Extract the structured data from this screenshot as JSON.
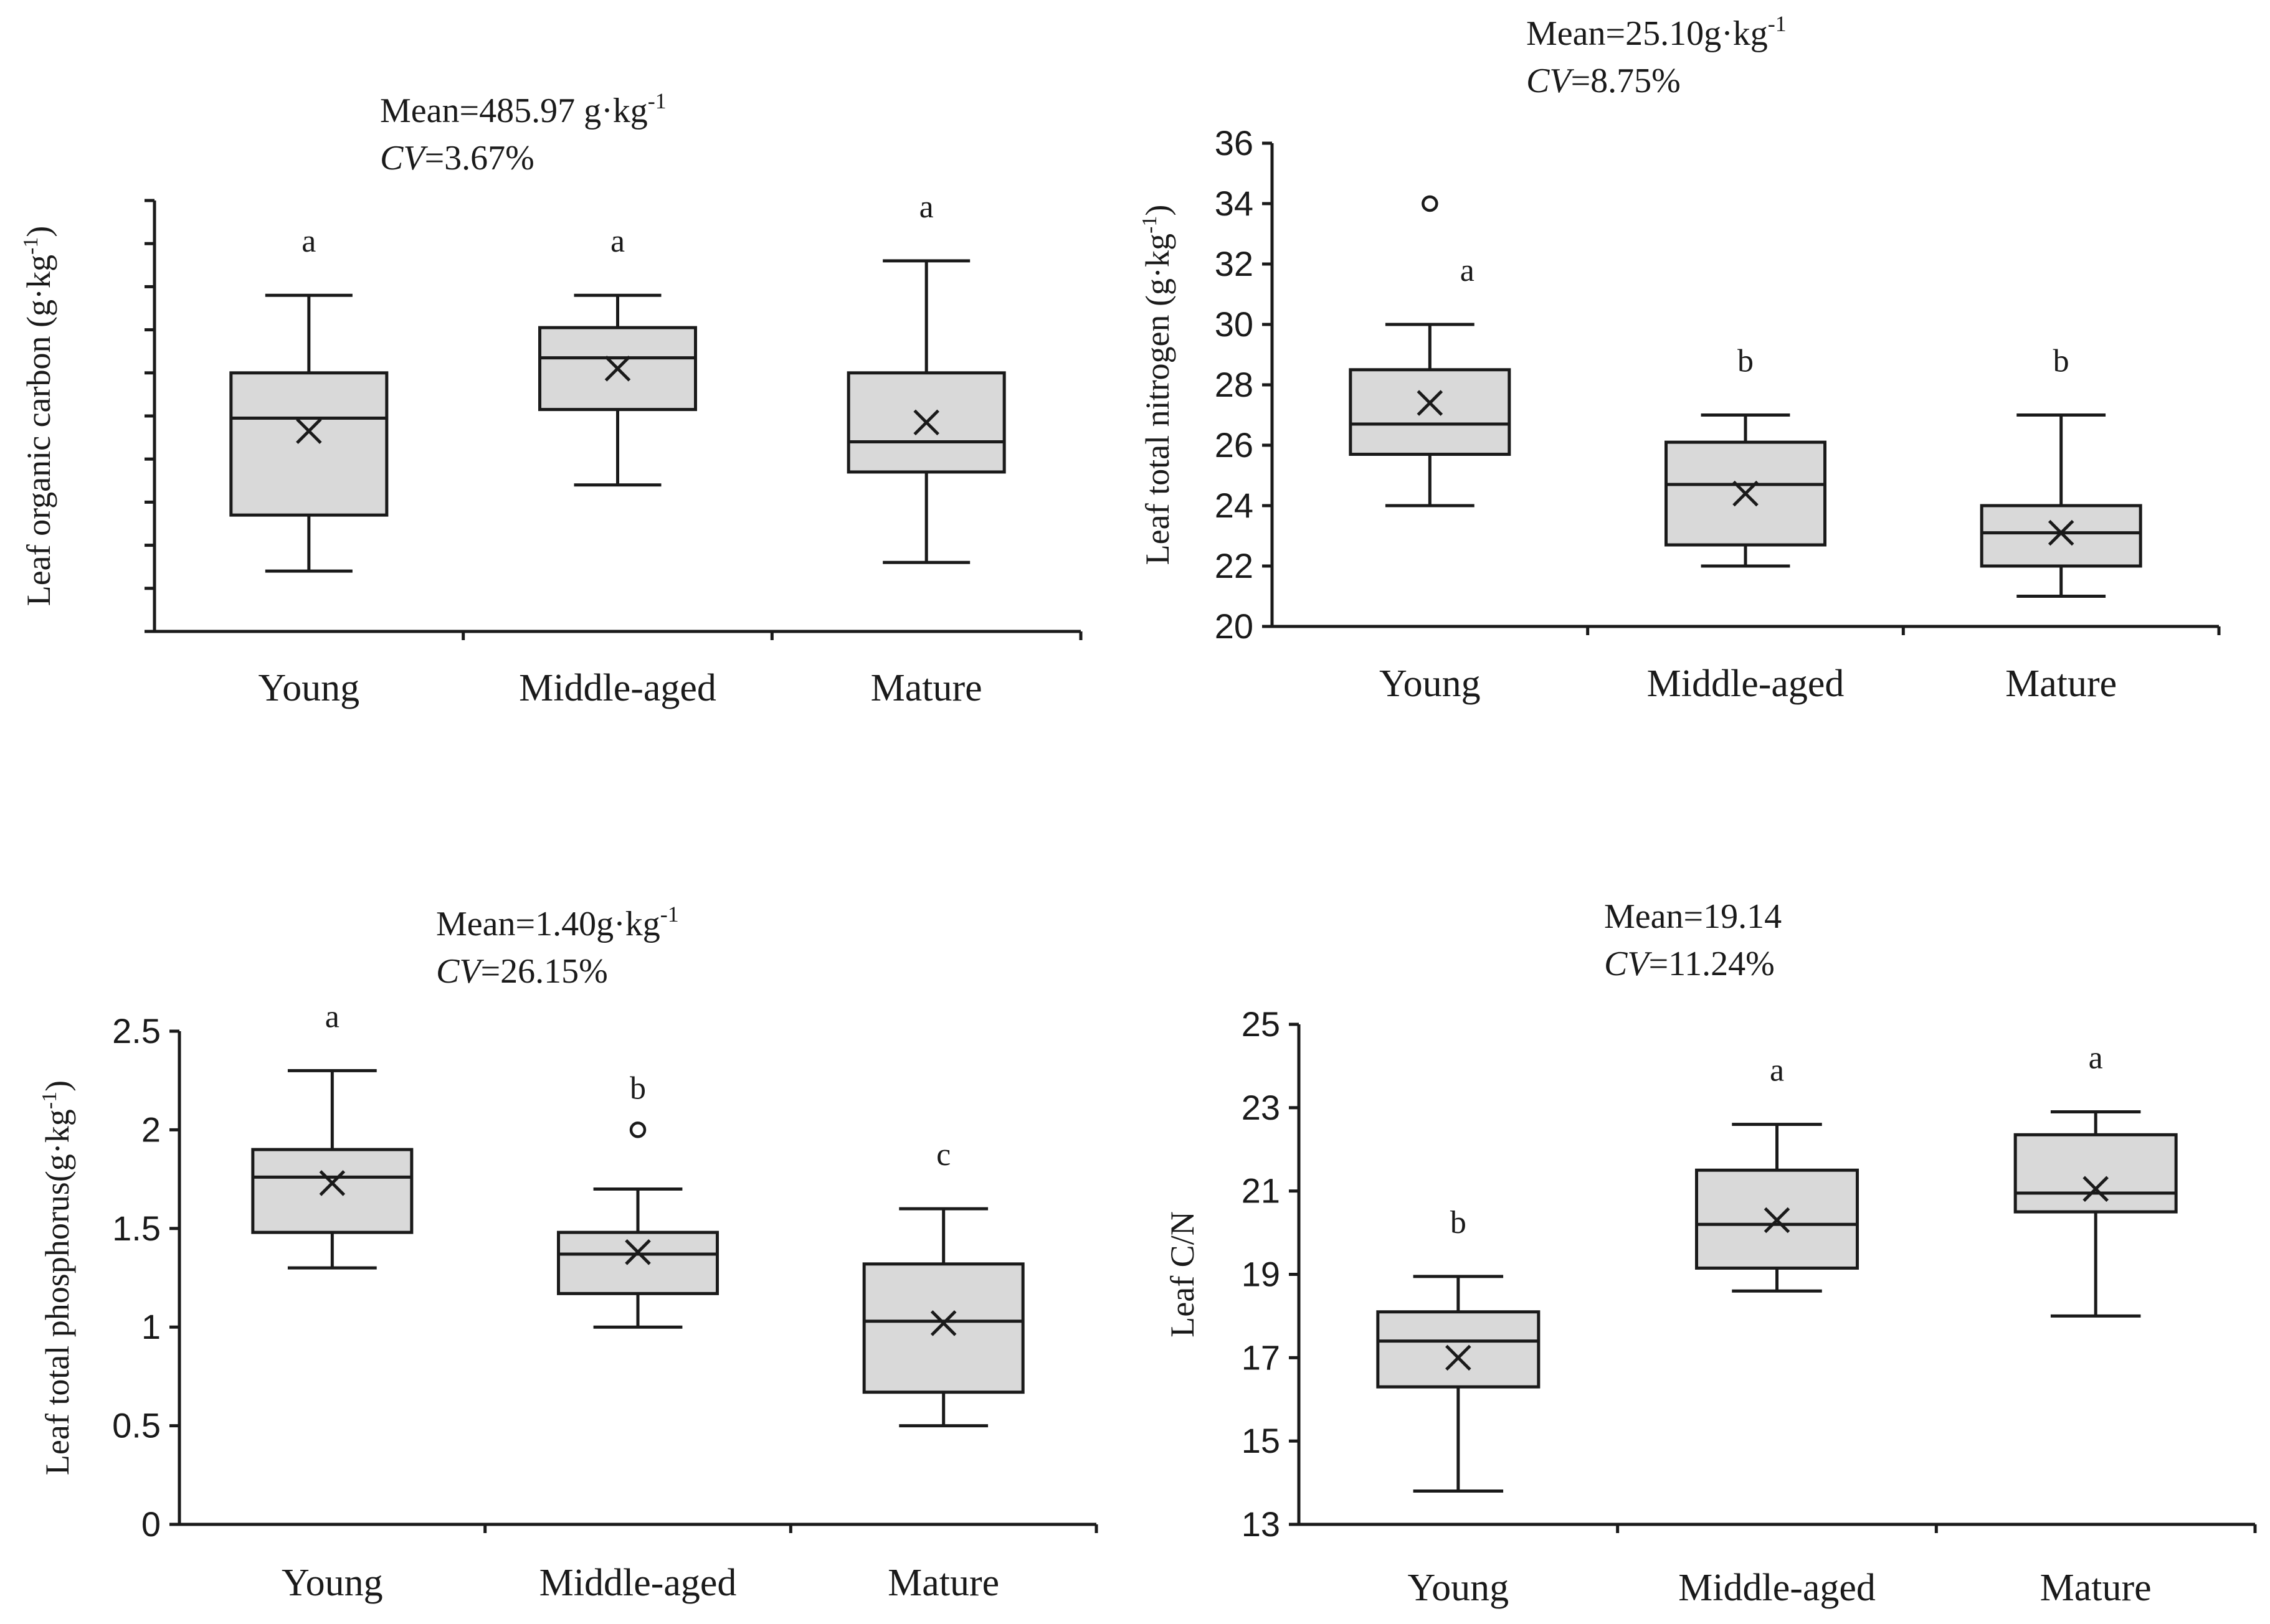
{
  "chart_data": [
    {
      "type": "box",
      "id": "carbon",
      "title": "",
      "stats": {
        "mean_text": "Mean=485.97 g·kg",
        "mean_sup": "-1",
        "cv_label": "CV",
        "cv_value": "=3.67%"
      },
      "ylabel": "Leaf organic carbon (g·kg",
      "ylabel_sup": "-1",
      "ylabel_close": ")",
      "ylim": [
        440,
        540
      ],
      "yticks": [
        440,
        450,
        460,
        470,
        480,
        490,
        500,
        510,
        520,
        530,
        540
      ],
      "show_tick_labels": false,
      "categories": [
        "Young",
        "Middle-aged",
        "Mature"
      ],
      "boxes": [
        {
          "category": "Young",
          "min": 454,
          "q1": 467,
          "median": 489.5,
          "q3": 500,
          "max": 518,
          "mean": 486.5,
          "outliers": [],
          "letter": "a"
        },
        {
          "category": "Middle-aged",
          "min": 474,
          "q1": 491.5,
          "median": 503.5,
          "q3": 510.5,
          "max": 518,
          "mean": 501,
          "outliers": [],
          "letter": "a"
        },
        {
          "category": "Mature",
          "min": 456,
          "q1": 477,
          "median": 484,
          "q3": 500,
          "max": 526,
          "mean": 488.5,
          "outliers": [],
          "letter": "a"
        }
      ]
    },
    {
      "type": "box",
      "id": "nitrogen",
      "title": "",
      "stats": {
        "mean_text": "Mean=25.10g·kg",
        "mean_sup": "-1",
        "cv_label": "CV",
        "cv_value": "=8.75%"
      },
      "ylabel": "Leaf total nitrogen (g·kg",
      "ylabel_sup": "-1",
      "ylabel_close": ")",
      "ylim": [
        20,
        36
      ],
      "yticks": [
        20,
        22,
        24,
        26,
        28,
        30,
        32,
        34,
        36
      ],
      "show_tick_labels": true,
      "categories": [
        "Young",
        "Middle-aged",
        "Mature"
      ],
      "boxes": [
        {
          "category": "Young",
          "min": 24,
          "q1": 25.7,
          "median": 26.7,
          "q3": 28.5,
          "max": 30,
          "mean": 27.4,
          "outliers": [
            34
          ],
          "letter": "a"
        },
        {
          "category": "Middle-aged",
          "min": 22,
          "q1": 22.7,
          "median": 24.7,
          "q3": 26.1,
          "max": 27,
          "mean": 24.4,
          "outliers": [],
          "letter": "b"
        },
        {
          "category": "Mature",
          "min": 21,
          "q1": 22,
          "median": 23.1,
          "q3": 24,
          "max": 27,
          "mean": 23.1,
          "outliers": [],
          "letter": "b"
        }
      ]
    },
    {
      "type": "box",
      "id": "phosphorus",
      "title": "",
      "stats": {
        "mean_text": "Mean=1.40g·kg",
        "mean_sup": "-1",
        "cv_label": "CV",
        "cv_value": "=26.15%"
      },
      "ylabel": "Leaf total phosphorus(g·kg",
      "ylabel_sup": "-1",
      "ylabel_close": ")",
      "ylim": [
        0,
        2.5
      ],
      "yticks": [
        0,
        0.5,
        1,
        1.5,
        2,
        2.5
      ],
      "show_tick_labels": true,
      "categories": [
        "Young",
        "Middle-aged",
        "Mature"
      ],
      "boxes": [
        {
          "category": "Young",
          "min": 1.3,
          "q1": 1.48,
          "median": 1.76,
          "q3": 1.9,
          "max": 2.3,
          "mean": 1.73,
          "outliers": [],
          "letter": "a"
        },
        {
          "category": "Middle-aged",
          "min": 1.0,
          "q1": 1.17,
          "median": 1.37,
          "q3": 1.48,
          "max": 1.7,
          "mean": 1.38,
          "outliers": [
            2.0
          ],
          "letter": "b"
        },
        {
          "category": "Mature",
          "min": 0.5,
          "q1": 0.67,
          "median": 1.03,
          "q3": 1.32,
          "max": 1.6,
          "mean": 1.02,
          "outliers": [],
          "letter": "c"
        }
      ]
    },
    {
      "type": "box",
      "id": "cn",
      "title": "",
      "stats": {
        "mean_text": "Mean=19.14",
        "mean_sup": "",
        "cv_label": "CV",
        "cv_value": "=11.24%"
      },
      "ylabel": "Leaf C/N",
      "ylabel_sup": "",
      "ylabel_close": "",
      "ylim": [
        13,
        25
      ],
      "yticks": [
        13,
        15,
        17,
        19,
        21,
        23,
        25
      ],
      "show_tick_labels": true,
      "categories": [
        "Young",
        "Middle-aged",
        "Mature"
      ],
      "boxes": [
        {
          "category": "Young",
          "min": 13.8,
          "q1": 16.3,
          "median": 17.4,
          "q3": 18.1,
          "max": 18.95,
          "mean": 17.0,
          "outliers": [],
          "letter": "b"
        },
        {
          "category": "Middle-aged",
          "min": 18.6,
          "q1": 19.15,
          "median": 20.2,
          "q3": 21.5,
          "max": 22.6,
          "mean": 20.3,
          "outliers": [],
          "letter": "a"
        },
        {
          "category": "Mature",
          "min": 18.0,
          "q1": 20.5,
          "median": 20.95,
          "q3": 22.35,
          "max": 22.9,
          "mean": 21.05,
          "outliers": [],
          "letter": "a"
        }
      ]
    }
  ]
}
